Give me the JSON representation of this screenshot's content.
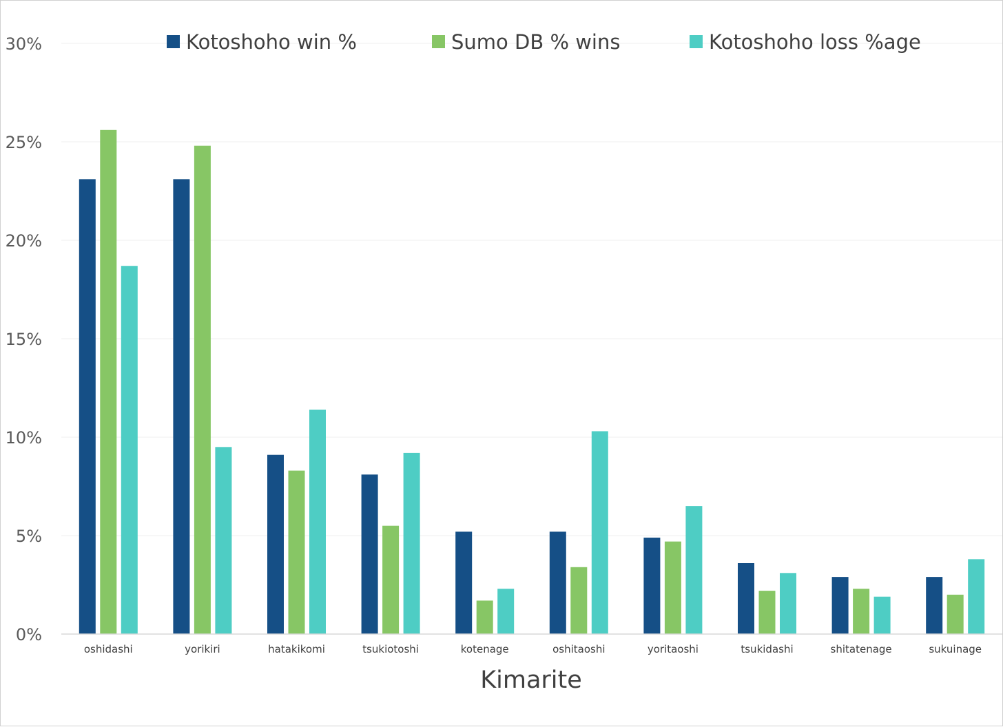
{
  "chart_data": {
    "type": "bar",
    "title": "",
    "xlabel": "Kimarite",
    "ylabel": "",
    "categories": [
      "oshidashi",
      "yorikiri",
      "hatakikomi",
      "tsukiotoshi",
      "kotenage",
      "oshitaoshi",
      "yoritaoshi",
      "tsukidashi",
      "shitatenage",
      "sukuinage"
    ],
    "series": [
      {
        "name": "Kotoshoho win %",
        "color": "#154f86",
        "values": [
          23.1,
          23.1,
          9.1,
          8.1,
          5.2,
          5.2,
          4.9,
          3.6,
          2.9,
          2.9
        ]
      },
      {
        "name": "Sumo DB % wins",
        "color": "#87c665",
        "values": [
          25.6,
          24.8,
          8.3,
          5.5,
          1.7,
          3.4,
          4.7,
          2.2,
          2.3,
          2.0
        ]
      },
      {
        "name": "Kotoshoho loss %age",
        "color": "#4ecdc4",
        "values": [
          18.7,
          9.5,
          11.4,
          9.2,
          2.3,
          10.3,
          6.5,
          3.1,
          1.9,
          3.8
        ]
      }
    ],
    "ylim": [
      0,
      30
    ],
    "yticks": [
      "0%",
      "5%",
      "10%",
      "15%",
      "20%",
      "25%",
      "30%"
    ],
    "ytick_values": [
      0,
      5,
      10,
      15,
      20,
      25,
      30
    ],
    "grid": true,
    "legend_position": "top"
  }
}
